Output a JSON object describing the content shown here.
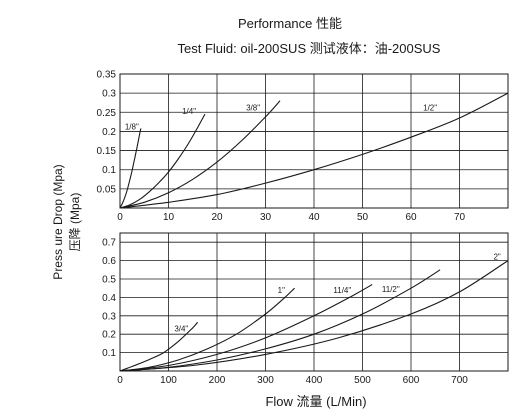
{
  "title": "Performance 性能",
  "subtitle": "Test Fluid: oil-200SUS 测试液体：油-200SUS",
  "ylabel_en": "Press ure Drop (Mpa)",
  "ylabel_cn": "压降 (Mpa)",
  "xlabel": "Flow 流量 (L/Min)",
  "chart_data": [
    {
      "type": "line",
      "xlim": [
        0,
        80
      ],
      "ylim": [
        0,
        0.35
      ],
      "grid": true,
      "x_ticks": [
        {
          "value": 0,
          "label": "0"
        },
        {
          "value": 10,
          "label": "10"
        },
        {
          "value": 20,
          "label": "20"
        },
        {
          "value": 30,
          "label": "30"
        },
        {
          "value": 40,
          "label": "40"
        },
        {
          "value": 50,
          "label": "50"
        },
        {
          "value": 60,
          "label": "60"
        },
        {
          "value": 70,
          "label": "70"
        }
      ],
      "y_ticks": [
        {
          "value": 0,
          "label": ""
        },
        {
          "value": 0.05,
          "label": "0.05"
        },
        {
          "value": 0.1,
          "label": "0.1"
        },
        {
          "value": 0.15,
          "label": "0.15"
        },
        {
          "value": 0.2,
          "label": "0.2"
        },
        {
          "value": 0.25,
          "label": "0.25"
        },
        {
          "value": 0.3,
          "label": "0.3"
        },
        {
          "value": 0.35,
          "label": "0.35"
        }
      ],
      "series": [
        {
          "name": "1/8\"",
          "x": [
            0,
            0.5,
            1,
            1.5,
            2,
            2.5,
            3,
            3.5,
            4,
            4.3
          ],
          "y": [
            0,
            0.012,
            0.028,
            0.048,
            0.072,
            0.098,
            0.128,
            0.158,
            0.19,
            0.208
          ]
        },
        {
          "name": "1/4\"",
          "x": [
            0,
            2,
            4,
            6,
            8,
            10,
            12,
            14,
            16,
            17.5
          ],
          "y": [
            0,
            0.008,
            0.022,
            0.042,
            0.066,
            0.094,
            0.128,
            0.166,
            0.21,
            0.245
          ]
        },
        {
          "name": "3/8\"",
          "x": [
            0,
            5,
            10,
            15,
            20,
            25,
            30,
            33
          ],
          "y": [
            0,
            0.015,
            0.04,
            0.075,
            0.12,
            0.175,
            0.238,
            0.28
          ]
        },
        {
          "name": "1/2\"",
          "x": [
            0,
            10,
            20,
            30,
            40,
            50,
            60,
            70,
            80
          ],
          "y": [
            0,
            0.015,
            0.035,
            0.065,
            0.1,
            0.14,
            0.185,
            0.235,
            0.3
          ]
        }
      ],
      "labels": [
        {
          "text": "1/8\"",
          "x": 1,
          "y": 0.205
        },
        {
          "text": "1/4\"",
          "x": 12.8,
          "y": 0.245
        },
        {
          "text": "3/8\"",
          "x": 26,
          "y": 0.255
        },
        {
          "text": "1/2\"",
          "x": 62.5,
          "y": 0.255
        }
      ]
    },
    {
      "type": "line",
      "xlim": [
        0,
        800
      ],
      "ylim": [
        0,
        0.75
      ],
      "grid": true,
      "x_ticks": [
        {
          "value": 0,
          "label": "0"
        },
        {
          "value": 100,
          "label": "100"
        },
        {
          "value": 200,
          "label": "200"
        },
        {
          "value": 300,
          "label": "300"
        },
        {
          "value": 400,
          "label": "400"
        },
        {
          "value": 500,
          "label": "500"
        },
        {
          "value": 600,
          "label": "600"
        },
        {
          "value": 700,
          "label": "700"
        }
      ],
      "y_ticks": [
        {
          "value": 0,
          "label": ""
        },
        {
          "value": 0.1,
          "label": "0.1"
        },
        {
          "value": 0.2,
          "label": "0.2"
        },
        {
          "value": 0.3,
          "label": "0.3"
        },
        {
          "value": 0.4,
          "label": "0.4"
        },
        {
          "value": 0.5,
          "label": "0.5"
        },
        {
          "value": 0.6,
          "label": "0.6"
        },
        {
          "value": 0.7,
          "label": "0.7"
        }
      ],
      "series": [
        {
          "name": "3/4\"",
          "x": [
            0,
            30,
            60,
            90,
            120,
            150,
            160
          ],
          "y": [
            0,
            0.03,
            0.062,
            0.1,
            0.16,
            0.235,
            0.265
          ]
        },
        {
          "name": "1\"",
          "x": [
            0,
            60,
            120,
            180,
            240,
            300,
            340,
            360
          ],
          "y": [
            0,
            0.02,
            0.06,
            0.12,
            0.2,
            0.31,
            0.4,
            0.45
          ]
        },
        {
          "name": "11/4\"",
          "x": [
            0,
            100,
            200,
            300,
            400,
            480,
            520
          ],
          "y": [
            0,
            0.03,
            0.09,
            0.18,
            0.3,
            0.41,
            0.47
          ]
        },
        {
          "name": "11/2\"",
          "x": [
            0,
            100,
            200,
            300,
            400,
            500,
            600,
            660
          ],
          "y": [
            0,
            0.02,
            0.06,
            0.12,
            0.2,
            0.31,
            0.45,
            0.55
          ]
        },
        {
          "name": "2\"",
          "x": [
            0,
            150,
            300,
            450,
            600,
            700,
            800
          ],
          "y": [
            0,
            0.03,
            0.09,
            0.18,
            0.31,
            0.43,
            0.6
          ]
        }
      ],
      "labels": [
        {
          "text": "3/4\"",
          "x": 112,
          "y": 0.215
        },
        {
          "text": "1\"",
          "x": 325,
          "y": 0.425
        },
        {
          "text": "11/4\"",
          "x": 440,
          "y": 0.425
        },
        {
          "text": "11/2\"",
          "x": 540,
          "y": 0.43
        },
        {
          "text": "2\"",
          "x": 770,
          "y": 0.605
        }
      ]
    }
  ]
}
